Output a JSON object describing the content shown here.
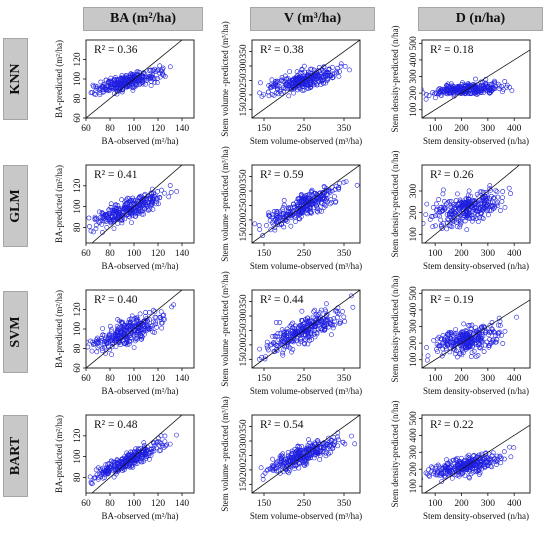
{
  "columns": [
    {
      "key": "ba",
      "header": "BA (m²/ha)"
    },
    {
      "key": "v",
      "header": "V (m³/ha)"
    },
    {
      "key": "d",
      "header": "D (n/ha)"
    }
  ],
  "rows": [
    {
      "key": "knn",
      "header": "KNN"
    },
    {
      "key": "glm",
      "header": "GLM"
    },
    {
      "key": "svm",
      "header": "SVM"
    },
    {
      "key": "bart",
      "header": "BART"
    }
  ],
  "colors": {
    "points": "#1f1fe0",
    "panel_header": "#c8c8c8",
    "axis": "#111111"
  },
  "chart_data": [
    {
      "type": "scatter",
      "model": "KNN",
      "variable": "BA",
      "r2_label": "R² = 0.36",
      "xlabel": "BA-observed  (m²/ha)",
      "ylabel": "BA-predicted  (m²/ha)",
      "xlim": [
        60,
        150
      ],
      "ylim": [
        60,
        140
      ],
      "xticks": [
        60,
        80,
        100,
        120,
        140
      ],
      "yticks": [
        60,
        80,
        100,
        120
      ],
      "reference_line": "1:1",
      "x_center": 95,
      "x_sd": 14,
      "y_center": 97,
      "slope": 0.32,
      "noise": 4
    },
    {
      "type": "scatter",
      "model": "KNN",
      "variable": "V",
      "r2_label": "R² = 0.38",
      "xlabel": "Stem volume-observed  (m³/ha)",
      "ylabel": "Stem volume -predicted  (m³/ha)",
      "xlim": [
        120,
        390
      ],
      "ylim": [
        120,
        390
      ],
      "xticks": [
        150,
        250,
        350
      ],
      "yticks": [
        150,
        200,
        250,
        300,
        350
      ],
      "reference_line": "1:1",
      "x_center": 250,
      "x_sd": 45,
      "y_center": 252,
      "slope": 0.35,
      "noise": 15
    },
    {
      "type": "scatter",
      "model": "KNN",
      "variable": "D",
      "r2_label": "R² = 0.18",
      "xlabel": "Stem density-observed  (n/ha)",
      "ylabel": "Stem density-predicted  (n/ha)",
      "xlim": [
        50,
        460
      ],
      "ylim": [
        50,
        520
      ],
      "xticks": [
        100,
        200,
        300,
        400
      ],
      "yticks": [
        100,
        200,
        300,
        400,
        500
      ],
      "reference_line": "1:1",
      "x_center": 220,
      "x_sd": 65,
      "y_center": 222,
      "slope": 0.12,
      "noise": 17
    },
    {
      "type": "scatter",
      "model": "GLM",
      "variable": "BA",
      "r2_label": "R² = 0.41",
      "xlabel": "BA-observed  (m²/ha)",
      "ylabel": "BA-predicted  (m²/ha)",
      "xlim": [
        60,
        150
      ],
      "ylim": [
        65,
        140
      ],
      "xticks": [
        60,
        80,
        100,
        120,
        140
      ],
      "yticks": [
        80,
        100,
        120
      ],
      "reference_line": "1:1",
      "x_center": 95,
      "x_sd": 14,
      "y_center": 97,
      "slope": 0.42,
      "noise": 5
    },
    {
      "type": "scatter",
      "model": "GLM",
      "variable": "V",
      "r2_label": "R² = 0.59",
      "xlabel": "Stem volume-observed  (m³/ha)",
      "ylabel": "Stem volume -predicted  (m³/ha)",
      "xlim": [
        120,
        390
      ],
      "ylim": [
        120,
        390
      ],
      "xticks": [
        150,
        250,
        350
      ],
      "yticks": [
        150,
        200,
        250,
        300,
        350
      ],
      "reference_line": "1:1",
      "x_center": 250,
      "x_sd": 45,
      "y_center": 250,
      "slope": 0.6,
      "noise": 20
    },
    {
      "type": "scatter",
      "model": "GLM",
      "variable": "D",
      "r2_label": "R² = 0.26",
      "xlabel": "Stem density-observed  (n/ha)",
      "ylabel": "Stem density-predicted  (n/ha)",
      "xlim": [
        50,
        460
      ],
      "ylim": [
        60,
        420
      ],
      "xticks": [
        100,
        200,
        300,
        400
      ],
      "yticks": [
        100,
        200,
        300
      ],
      "reference_line": "1:1",
      "x_center": 220,
      "x_sd": 65,
      "y_center": 222,
      "slope": 0.28,
      "noise": 35
    },
    {
      "type": "scatter",
      "model": "SVM",
      "variable": "BA",
      "r2_label": "R² = 0.40",
      "xlabel": "BA-observed  (m²/ha)",
      "ylabel": "BA-predicted  (m²/ha)",
      "xlim": [
        60,
        150
      ],
      "ylim": [
        60,
        140
      ],
      "xticks": [
        60,
        80,
        100,
        120,
        140
      ],
      "yticks": [
        60,
        80,
        100,
        120
      ],
      "reference_line": "1:1",
      "x_center": 95,
      "x_sd": 14,
      "y_center": 97,
      "slope": 0.5,
      "noise": 6
    },
    {
      "type": "scatter",
      "model": "SVM",
      "variable": "V",
      "r2_label": "R² = 0.44",
      "xlabel": "Stem volume-observed  (m³/ha)",
      "ylabel": "Stem volume -predicted  (m³/ha)",
      "xlim": [
        120,
        390
      ],
      "ylim": [
        120,
        390
      ],
      "xticks": [
        150,
        250,
        350
      ],
      "yticks": [
        150,
        200,
        250,
        300,
        350
      ],
      "reference_line": "1:1",
      "x_center": 250,
      "x_sd": 45,
      "y_center": 250,
      "slope": 0.6,
      "noise": 22
    },
    {
      "type": "scatter",
      "model": "SVM",
      "variable": "D",
      "r2_label": "R² = 0.19",
      "xlabel": "Stem density-observed  (n/ha)",
      "ylabel": "Stem density-predicted  (n/ha)",
      "xlim": [
        50,
        460
      ],
      "ylim": [
        50,
        520
      ],
      "xticks": [
        100,
        200,
        300,
        400
      ],
      "yticks": [
        100,
        200,
        300,
        400,
        500
      ],
      "reference_line": "1:1",
      "x_center": 220,
      "x_sd": 65,
      "y_center": 222,
      "slope": 0.3,
      "noise": 38
    },
    {
      "type": "scatter",
      "model": "BART",
      "variable": "BA",
      "r2_label": "R² = 0.48",
      "xlabel": "BA-observed  (m²/ha)",
      "ylabel": "BA-predicted  (m²/ha)",
      "xlim": [
        60,
        150
      ],
      "ylim": [
        65,
        140
      ],
      "xticks": [
        60,
        80,
        100,
        120,
        140
      ],
      "yticks": [
        80,
        100,
        120
      ],
      "reference_line": "1:1",
      "x_center": 95,
      "x_sd": 14,
      "y_center": 96,
      "slope": 0.55,
      "noise": 4
    },
    {
      "type": "scatter",
      "model": "BART",
      "variable": "V",
      "r2_label": "R² = 0.54",
      "xlabel": "Stem volume-observed  (m³/ha)",
      "ylabel": "Stem volume -predicted  (m³/ha)",
      "xlim": [
        120,
        390
      ],
      "ylim": [
        120,
        390
      ],
      "xticks": [
        150,
        250,
        350
      ],
      "yticks": [
        150,
        200,
        250,
        300,
        350
      ],
      "reference_line": "1:1",
      "x_center": 250,
      "x_sd": 45,
      "y_center": 250,
      "slope": 0.55,
      "noise": 17
    },
    {
      "type": "scatter",
      "model": "BART",
      "variable": "D",
      "r2_label": "R² = 0.22",
      "xlabel": "Stem density-observed  (n/ha)",
      "ylabel": "Stem density-predicted  (n/ha)",
      "xlim": [
        50,
        460
      ],
      "ylim": [
        60,
        520
      ],
      "xticks": [
        100,
        200,
        300,
        400
      ],
      "yticks": [
        100,
        200,
        300,
        400,
        500
      ],
      "reference_line": "1:1",
      "x_center": 220,
      "x_sd": 65,
      "y_center": 222,
      "slope": 0.3,
      "noise": 28
    }
  ]
}
